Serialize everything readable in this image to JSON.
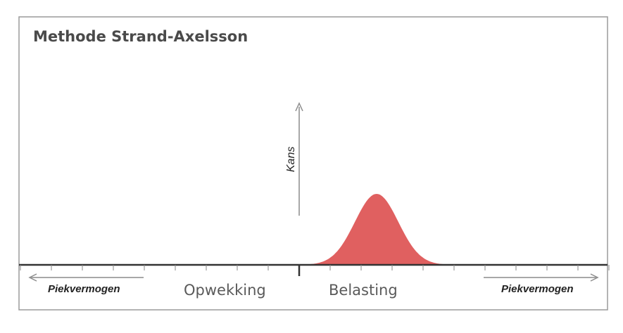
{
  "title": "Methode Strand-Axelsson",
  "y_axis_label": "Kans",
  "left_label": "Opwekking",
  "right_label": "Belasting",
  "left_arrow_label": "Piekvermogen",
  "right_arrow_label": "Piekvermogen",
  "colors": {
    "frame": "#9a9a9a",
    "axis": "#333333",
    "ticks": "#888888",
    "curve_fill": "#e06060",
    "arrow": "#8c8c8c"
  },
  "chart_data": {
    "type": "area",
    "title": "Methode Strand-Axelsson",
    "ylabel": "Kans",
    "xlabel": "",
    "regions": [
      "Opwekking",
      "Belasting"
    ],
    "distribution": "normal",
    "tick_count_each_side": 10,
    "mean_tick_right": 2.5,
    "stddev_ticks": 0.7,
    "range_ticks_right": [
      0,
      4.8
    ]
  }
}
